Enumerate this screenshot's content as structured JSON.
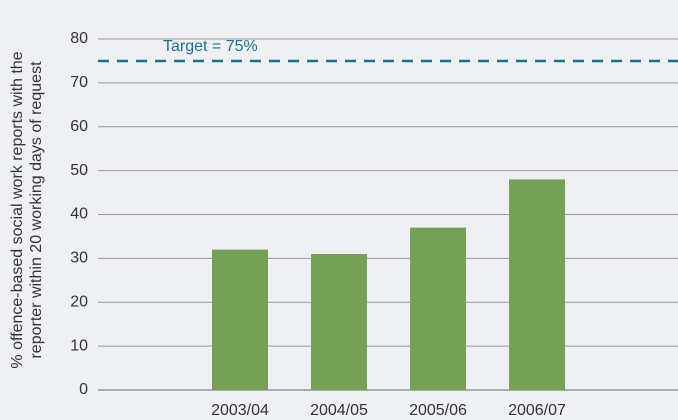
{
  "chart_data": {
    "type": "bar",
    "ylabel": [
      "% offence-based social work reports with the",
      "reporter within 20 working days of request"
    ],
    "categories": [
      "2003/04",
      "2004/05",
      "2005/06",
      "2006/07"
    ],
    "values": [
      32,
      31,
      37,
      48
    ],
    "color": "#74a157",
    "ylim": [
      0,
      80
    ],
    "yticks": [
      0,
      10,
      20,
      30,
      40,
      50,
      60,
      70,
      80
    ],
    "grid": true,
    "target": {
      "value": 75,
      "label": "Target = 75%",
      "color": "#1f6f8b"
    }
  }
}
